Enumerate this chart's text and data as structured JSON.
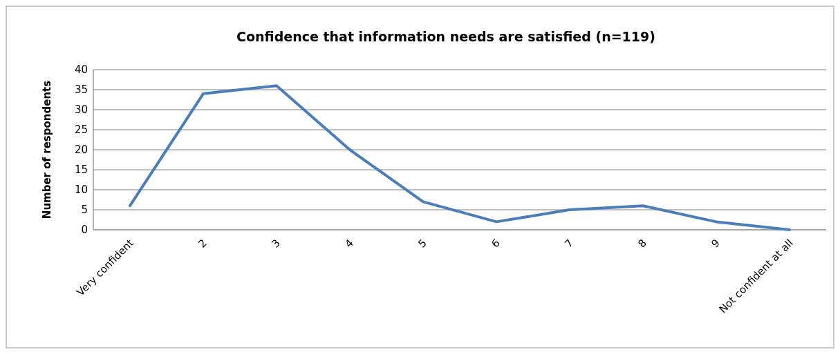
{
  "chart_data": {
    "type": "line",
    "title": "Confidence that information needs are satisfied (n=119)",
    "ylabel": "Number of respondents",
    "categories": [
      "Very confident",
      "2",
      "3",
      "4",
      "5",
      "6",
      "7",
      "8",
      "9",
      "Not confident at all"
    ],
    "series": [
      {
        "color": "#4a7ebb",
        "values": [
          6,
          34,
          36,
          20,
          7,
          2,
          5,
          6,
          2,
          0
        ]
      }
    ],
    "ylim": [
      0,
      40
    ],
    "yticks": [
      0,
      5,
      10,
      15,
      20,
      25,
      30,
      35,
      40
    ],
    "grid": "y",
    "marker": "none",
    "line_style": "solid"
  }
}
